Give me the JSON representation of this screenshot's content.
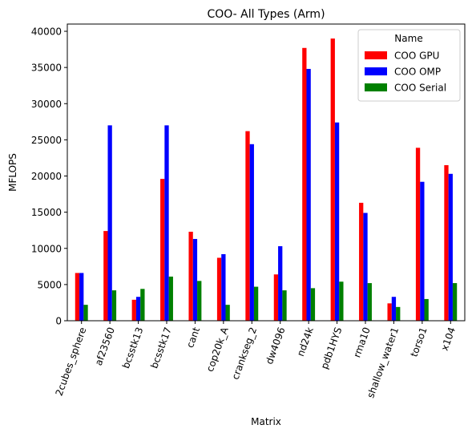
{
  "chart_data": {
    "type": "bar",
    "title": "COO- All Types (Arm)",
    "xlabel": "Matrix",
    "ylabel": "MFLOPS",
    "ylim": [
      0,
      41000
    ],
    "yticks": [
      0,
      5000,
      10000,
      15000,
      20000,
      25000,
      30000,
      35000,
      40000
    ],
    "grid": false,
    "legend": {
      "title": "Name",
      "placement": "top-right"
    },
    "categories": [
      "2cubes_sphere",
      "af23560",
      "bcsstk13",
      "bcsstk17",
      "cant",
      "cop20k_A",
      "crankseg_2",
      "dw4096",
      "nd24k",
      "pdb1HYS",
      "rma10",
      "shallow_water1",
      "torso1",
      "x104"
    ],
    "series": [
      {
        "name": "COO GPU",
        "color": "#ff0000",
        "values": [
          6600,
          12400,
          2900,
          19600,
          12300,
          8700,
          26200,
          6400,
          37700,
          39000,
          16300,
          2400,
          23900,
          21500
        ]
      },
      {
        "name": "COO OMP",
        "color": "#0000ff",
        "values": [
          6600,
          27000,
          3300,
          27000,
          11300,
          9200,
          24400,
          10300,
          34800,
          27400,
          14900,
          3300,
          19200,
          20300
        ]
      },
      {
        "name": "COO Serial",
        "color": "#008000",
        "values": [
          2200,
          4200,
          4400,
          6100,
          5500,
          2200,
          4700,
          4200,
          4500,
          5400,
          5200,
          1900,
          3000,
          5200
        ]
      }
    ]
  }
}
